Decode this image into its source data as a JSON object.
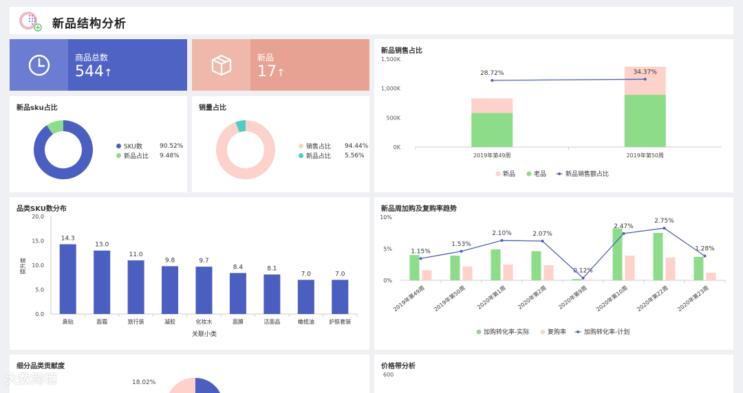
{
  "header": {
    "title": "新品结构分析"
  },
  "kpis": {
    "total": {
      "label": "商品总数",
      "value": "544",
      "arrow": "↑",
      "icon": "clock-icon",
      "color": "#4f63c4"
    },
    "new": {
      "label": "新品",
      "value": "17",
      "arrow": "↑",
      "icon": "box-icon",
      "color": "#eba496"
    }
  },
  "sku_ratio": {
    "title": "新品sku占比",
    "legend": [
      {
        "label": "SKU数",
        "value": "90.52%",
        "color": "#4a5fbf"
      },
      {
        "label": "新品占比",
        "value": "9.48%",
        "color": "#8ddc8a"
      }
    ],
    "chart_data": {
      "type": "pie",
      "labels": [
        "SKU数",
        "新品占比"
      ],
      "values": [
        90.52,
        9.48
      ]
    }
  },
  "sales_ratio": {
    "title": "销量占比",
    "legend": [
      {
        "label": "销售占比",
        "value": "94.44%",
        "color": "#fcd2ca"
      },
      {
        "label": "新品占比",
        "value": "5.56%",
        "color": "#4ecdc4"
      }
    ],
    "chart_data": {
      "type": "pie",
      "labels": [
        "销售占比",
        "新品占比"
      ],
      "values": [
        94.44,
        5.56
      ]
    }
  },
  "new_sales": {
    "title": "新品销售占比",
    "yticks": [
      "0K",
      "500K",
      "1,000K",
      "1,500K"
    ],
    "legend": [
      "新品",
      "老品",
      "新品销售额占比"
    ],
    "chart_data": {
      "type": "bar",
      "categories": [
        "2019年第49周",
        "2019年第50周"
      ],
      "series": [
        {
          "name": "老品",
          "values": [
            580000,
            890000
          ]
        },
        {
          "name": "新品",
          "values": [
            250000,
            480000
          ]
        },
        {
          "name": "新品销售额占比",
          "values": [
            28.72,
            34.37
          ]
        }
      ],
      "line_labels": [
        "28.72%",
        "34.37%"
      ],
      "ylim": [
        0,
        1500000
      ]
    }
  },
  "sku_dist": {
    "title": "品类SKU数分布",
    "ylabel": "提升度",
    "xlabel": "关联小类",
    "yticks": [
      "0.0",
      "5.0",
      "10.0",
      "15.0",
      "20.0"
    ],
    "chart_data": {
      "type": "bar",
      "categories": [
        "鼻贴",
        "面霜",
        "旅行装",
        "凝胶",
        "化妆水",
        "面膜",
        "洁面品",
        "橄榄油",
        "护肤套装"
      ],
      "values": [
        14.3,
        13.0,
        11.0,
        9.8,
        9.7,
        8.4,
        8.1,
        7.0,
        7.0
      ],
      "value_labels": [
        "14.3",
        "13.0",
        "11.0",
        "9.8",
        "9.7",
        "8.4",
        "8.1",
        "7.0",
        "7.0"
      ],
      "ylim": [
        0,
        20
      ]
    }
  },
  "repurchase": {
    "title": "新品周加购及复购率趋势",
    "yticks": [
      "0%",
      "5%",
      "10%"
    ],
    "legend": [
      "加购转化率-实际",
      "复购率",
      "加购转化率-计划"
    ],
    "chart_data": {
      "type": "bar",
      "categories": [
        "2019年第49周",
        "2019年第50周",
        "2020年第1周",
        "2020年第2周",
        "2020年第9周",
        "2020年第10周",
        "2020年第22周",
        "2020年第23周"
      ],
      "series": [
        {
          "name": "加购转化率-实际",
          "values": [
            4.0,
            3.9,
            4.9,
            4.6,
            0.2,
            8.2,
            7.5,
            3.7
          ]
        },
        {
          "name": "复购率",
          "values": [
            1.6,
            2.2,
            2.5,
            2.4,
            0.1,
            3.9,
            3.6,
            1.2
          ]
        },
        {
          "name": "加购转化率-计划",
          "values": [
            1.15,
            1.53,
            2.1,
            2.07,
            0.12,
            2.47,
            2.75,
            1.28
          ]
        }
      ],
      "line_labels": [
        "1.15%",
        "1.53%",
        "2.10%",
        "2.07%",
        "0.12%",
        "2.47%",
        "2.75%",
        "1.28%"
      ],
      "ylim": [
        0,
        10
      ]
    }
  },
  "contribution": {
    "title": "细分品类贡献度",
    "label": "18.02%"
  },
  "price_band": {
    "title": "价格带分析",
    "ytick": "600"
  },
  "watermark": "大数跨境"
}
